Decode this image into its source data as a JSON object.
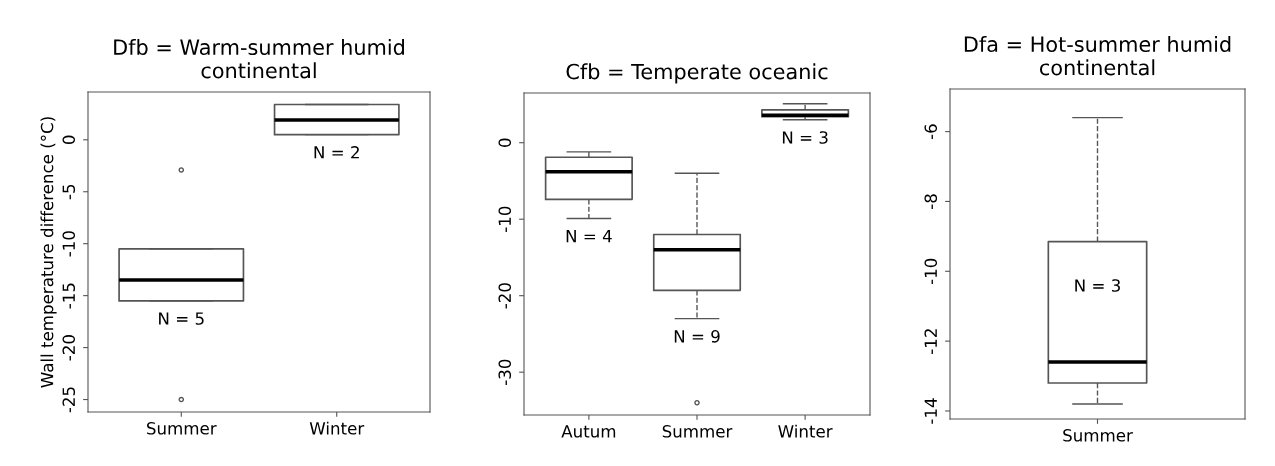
{
  "chart_data": [
    {
      "type": "box",
      "title": "Dfb = Warm-summer humid\ncontinental",
      "ylabel": "Wall temperature difference (°C)",
      "categories": [
        "Summer",
        "Winter"
      ],
      "ylim": [
        -26.2,
        4.6
      ],
      "yticks": [
        0,
        -5,
        -10,
        -15,
        -20,
        -25
      ],
      "grid": false,
      "boxes": [
        {
          "low": -15.5,
          "q1": -15.5,
          "median": -13.5,
          "q3": -10.5,
          "high": -10.5,
          "outliers": [
            -2.9,
            -25
          ]
        },
        {
          "low": 0.5,
          "q1": 0.5,
          "median": 1.9,
          "q3": 3.4,
          "high": 3.4
        }
      ],
      "annotations": [
        "N = 5",
        "N = 2"
      ]
    },
    {
      "type": "box",
      "title": "Cfb = Temperate oceanic",
      "categories": [
        "Autum",
        "Summer",
        "Winter"
      ],
      "ylim": [
        -35.6,
        6.5
      ],
      "yticks": [
        0,
        -10,
        -20,
        -30
      ],
      "grid": false,
      "boxes": [
        {
          "low": -9.9,
          "q1": -7.4,
          "median": -3.8,
          "q3": -1.9,
          "high": -1.2
        },
        {
          "low": -23,
          "q1": -19.3,
          "median": -14,
          "q3": -12,
          "high": -4,
          "outliers": [
            -34
          ]
        },
        {
          "low": 3,
          "q1": 3.4,
          "median": 3.6,
          "q3": 4.3,
          "high": 5.1
        }
      ],
      "annotations": [
        "N = 4",
        "N = 9",
        "N = 3"
      ]
    },
    {
      "type": "box",
      "title": "Dfa = Hot-summer humid\ncontinental",
      "categories": [
        "Summer"
      ],
      "ylim": [
        -14.23,
        -4.78
      ],
      "yticks": [
        -6,
        -8,
        -10,
        -12,
        -14
      ],
      "grid": false,
      "boxes": [
        {
          "low": -13.8,
          "q1": -13.2,
          "median": -12.6,
          "q3": -9.15,
          "high": -5.6
        }
      ],
      "annotations": [
        "N = 3"
      ]
    }
  ]
}
